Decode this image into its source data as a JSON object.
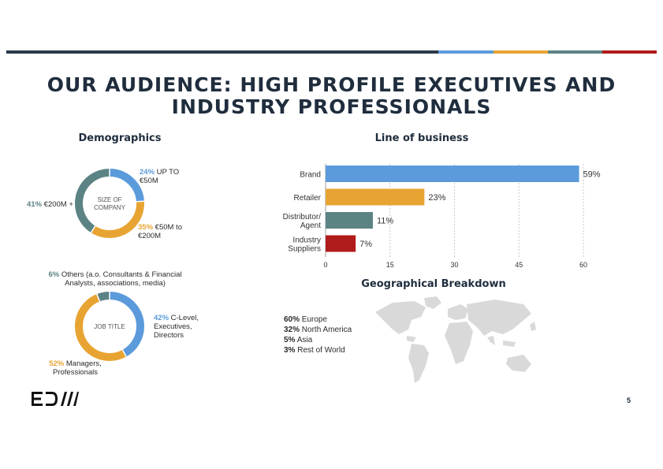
{
  "colors": {
    "navy": "#2b3a4c",
    "blue": "#5b9bdc",
    "orange": "#e8a432",
    "teal": "#5c8384",
    "red": "#b01b1b",
    "grid": "#bbbbbb"
  },
  "title": "OUR AUDIENCE: HIGH PROFILE EXECUTIVES AND INDUSTRY PROFESSIONALS",
  "demographics": {
    "title": "Demographics",
    "company_size": {
      "center_label": "SIZE OF COMPANY",
      "segments": [
        {
          "pct": "24%",
          "value": 24,
          "label": "UP TO €50M",
          "color": "#5b9bdc"
        },
        {
          "pct": "35%",
          "value": 35,
          "label": "€50M to €200M",
          "color": "#e8a432"
        },
        {
          "pct": "41%",
          "value": 41,
          "label": "€200M +",
          "color": "#5c8384"
        }
      ]
    },
    "job_title": {
      "center_label": "JOB TITLE",
      "segments": [
        {
          "pct": "42%",
          "value": 42,
          "label": "C-Level, Executives, Directors",
          "color": "#5b9bdc"
        },
        {
          "pct": "52%",
          "value": 52,
          "label": "Managers, Professionals",
          "color": "#e8a432"
        },
        {
          "pct": "6%",
          "value": 6,
          "label": "Others (a.o. Consultants & Financial Analysts, associations, media)",
          "color": "#5c8384"
        }
      ]
    }
  },
  "chart_data": {
    "type": "bar",
    "orientation": "horizontal",
    "title": "Line of business",
    "categories": [
      "Brand",
      "Retailer",
      "Distributor/ Agent",
      "Industry Suppliers"
    ],
    "values": [
      59,
      23,
      11,
      7
    ],
    "value_labels": [
      "59%",
      "23%",
      "11%",
      "7%"
    ],
    "colors": [
      "#5b9bdc",
      "#e8a432",
      "#5c8384",
      "#b01b1b"
    ],
    "xlim": [
      0,
      60
    ],
    "xticks": [
      0,
      15,
      30,
      45,
      60
    ],
    "grid": "vertical dashed"
  },
  "geography": {
    "title": "Geographical Breakdown",
    "items": [
      {
        "pct": "60%",
        "label": "Europe"
      },
      {
        "pct": "32%",
        "label": "North America"
      },
      {
        "pct": "5%",
        "label": "Asia"
      },
      {
        "pct": "3%",
        "label": "Rest of World"
      }
    ]
  },
  "logo": {
    "text": "EDIII"
  },
  "page_number": "5"
}
